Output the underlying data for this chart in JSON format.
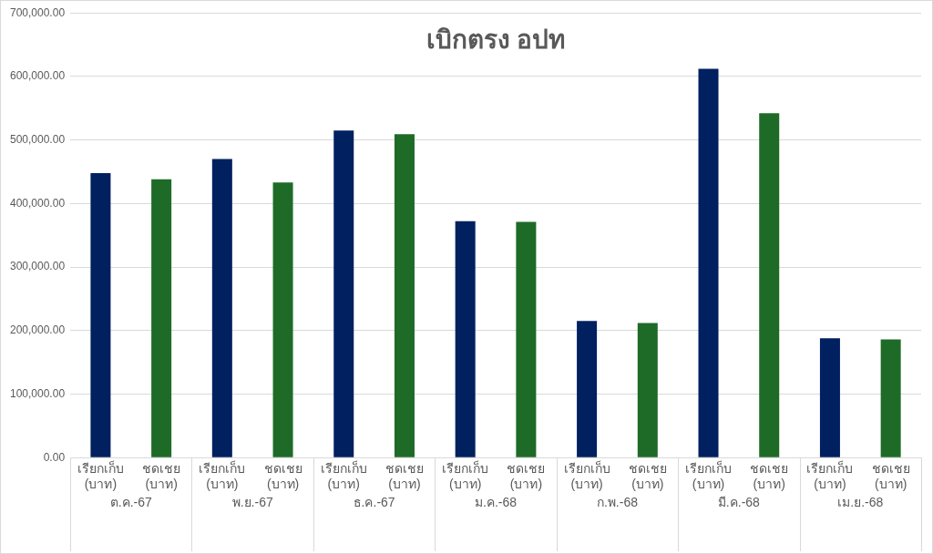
{
  "chart_data": {
    "type": "bar",
    "title": "เบิกตรง อปท",
    "categories": [
      "ต.ค.-67",
      "พ.ย.-67",
      "ธ.ค.-67",
      "ม.ค.-68",
      "ก.พ.-68",
      "มี.ค.-68",
      "เม.ย.-68"
    ],
    "series": [
      {
        "name": "เรียกเก็บ (บาท)",
        "color": "#002060",
        "values": [
          448000,
          470000,
          515000,
          372000,
          215000,
          612000,
          188000
        ]
      },
      {
        "name": "ชดเชย (บาท)",
        "color": "#1e6b28",
        "values": [
          438000,
          433000,
          509000,
          371000,
          212000,
          542000,
          186000
        ]
      }
    ],
    "ylim": [
      0,
      700000
    ],
    "yticks": [
      {
        "value": 0,
        "label": "0.00"
      },
      {
        "value": 100000,
        "label": "100,000.00"
      },
      {
        "value": 200000,
        "label": "200,000.00"
      },
      {
        "value": 300000,
        "label": "300,000.00"
      },
      {
        "value": 400000,
        "label": "400,000.00"
      },
      {
        "value": 500000,
        "label": "500,000.00"
      },
      {
        "value": 600000,
        "label": "600,000.00"
      },
      {
        "value": 700000,
        "label": "700,000.00"
      }
    ],
    "grid": "y",
    "legend": false
  }
}
